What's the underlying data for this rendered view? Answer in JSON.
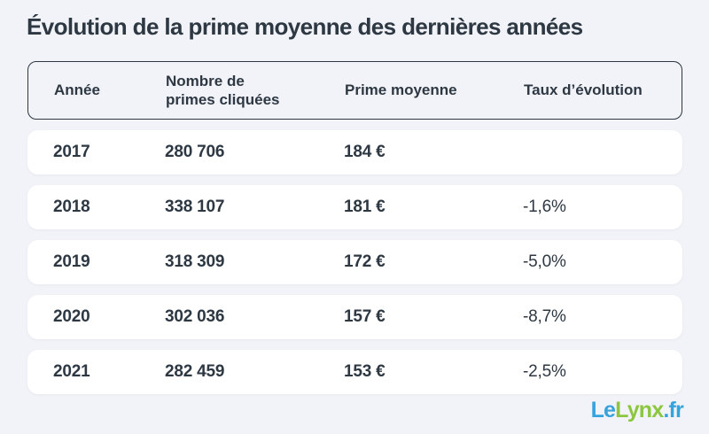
{
  "title": "Évolution de la prime moyenne des dernières années",
  "colors": {
    "background": "#f2f3f8",
    "row_background": "#ffffff",
    "text": "#2d3843",
    "header_border": "#2d3843",
    "brand_blue": "#36a3dc",
    "brand_green": "#8cc63e"
  },
  "table": {
    "columns": [
      "Année",
      "Nombre de\nprimes cliquées",
      "Prime moyenne",
      "Taux d’évolution"
    ],
    "rows": [
      {
        "year": "2017",
        "clicks": "280 706",
        "premium": "184 €",
        "evolution": ""
      },
      {
        "year": "2018",
        "clicks": "338 107",
        "premium": "181 €",
        "evolution": "-1,6%"
      },
      {
        "year": "2019",
        "clicks": "318 309",
        "premium": "172 €",
        "evolution": "-5,0%"
      },
      {
        "year": "2020",
        "clicks": "302 036",
        "premium": "157 €",
        "evolution": "-8,7%"
      },
      {
        "year": "2021",
        "clicks": "282 459",
        "premium": "153 €",
        "evolution": "-2,5%"
      }
    ]
  },
  "logo": {
    "part_le": "Le",
    "part_lynx": "Lynx",
    "part_fr": ".fr"
  },
  "chart_data": {
    "type": "table",
    "title": "Évolution de la prime moyenne des dernières années",
    "columns": [
      "Année",
      "Nombre de primes cliquées",
      "Prime moyenne",
      "Taux d’évolution"
    ],
    "rows": [
      [
        "2017",
        280706,
        184,
        null
      ],
      [
        "2018",
        338107,
        181,
        -1.6
      ],
      [
        "2019",
        318309,
        172,
        -5.0
      ],
      [
        "2020",
        302036,
        157,
        -8.7
      ],
      [
        "2021",
        282459,
        153,
        -2.5
      ]
    ],
    "units": {
      "prime_moyenne": "€",
      "taux_evolution": "%"
    }
  }
}
